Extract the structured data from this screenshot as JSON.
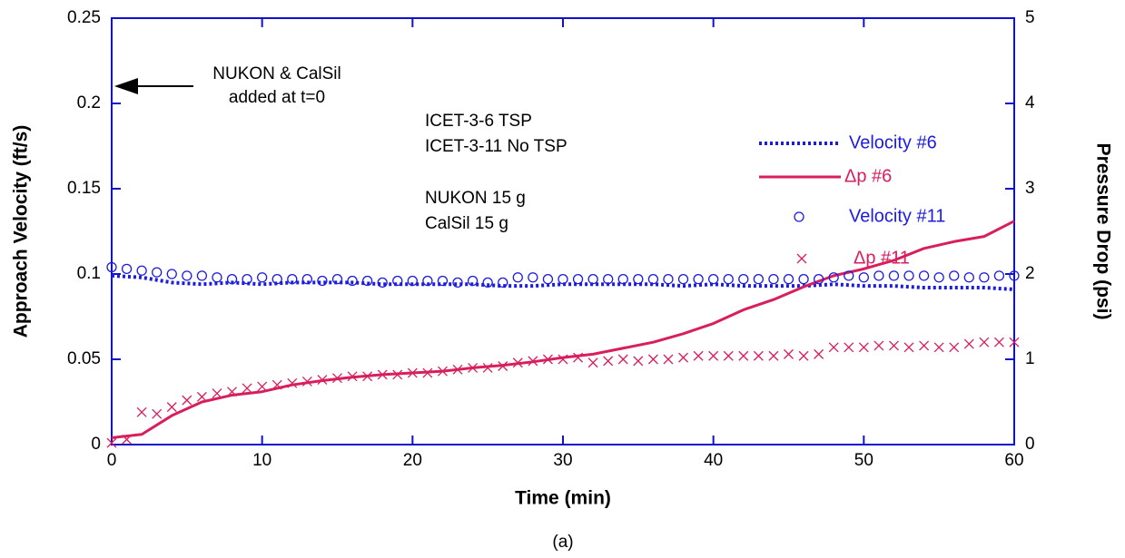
{
  "chart_data": {
    "type": "line",
    "caption": "(a)",
    "x_label": "Time (min)",
    "y_label": "Approach Velocity (ft/s)",
    "y2_label": "Pressure Drop (psi)",
    "xlim": [
      0,
      60
    ],
    "xticks": [
      0,
      10,
      20,
      30,
      40,
      50,
      60
    ],
    "ylim": [
      0,
      0.25
    ],
    "yticks": [
      0,
      0.05,
      0.1,
      0.15,
      0.2,
      0.25
    ],
    "y2lim": [
      0,
      5
    ],
    "y2ticks": [
      0,
      1,
      2,
      3,
      4,
      5
    ],
    "annotations": [
      "NUKON & CalSil",
      "added at t=0",
      "ICET-3-6 TSP",
      "ICET-3-11 No TSP",
      "NUKON 15 g",
      "CalSil 15 g"
    ],
    "series": [
      {
        "name": "Velocity #6",
        "color": "#1c1ce0",
        "style": "dotted",
        "x": [
          0,
          2,
          4,
          6,
          8,
          10,
          12,
          14,
          16,
          18,
          20,
          22,
          24,
          26,
          28,
          30,
          32,
          34,
          36,
          38,
          40,
          42,
          44,
          46,
          48,
          50,
          52,
          54,
          56,
          58,
          60
        ],
        "values": [
          0.099,
          0.098,
          0.095,
          0.094,
          0.095,
          0.094,
          0.095,
          0.095,
          0.095,
          0.094,
          0.094,
          0.094,
          0.094,
          0.093,
          0.093,
          0.094,
          0.094,
          0.094,
          0.094,
          0.093,
          0.094,
          0.093,
          0.093,
          0.093,
          0.094,
          0.093,
          0.093,
          0.092,
          0.092,
          0.092,
          0.091
        ]
      },
      {
        "name": "Δp #6",
        "color": "#d81e5b",
        "style": "solid",
        "axis": "y2",
        "x": [
          0,
          2,
          4,
          6,
          8,
          10,
          12,
          14,
          16,
          18,
          20,
          22,
          24,
          26,
          28,
          30,
          32,
          34,
          36,
          38,
          40,
          42,
          44,
          46,
          48,
          50,
          52,
          54,
          56,
          58,
          60
        ],
        "values": [
          0.08,
          0.12,
          0.34,
          0.5,
          0.58,
          0.62,
          0.7,
          0.75,
          0.79,
          0.82,
          0.84,
          0.86,
          0.9,
          0.93,
          0.97,
          1.02,
          1.06,
          1.13,
          1.2,
          1.3,
          1.42,
          1.58,
          1.7,
          1.85,
          1.98,
          2.06,
          2.16,
          2.3,
          2.38,
          2.44,
          2.62
        ]
      },
      {
        "name": "Velocity #11",
        "color": "#1c1ce0",
        "style": "circle",
        "x": [
          0,
          1,
          2,
          3,
          4,
          5,
          6,
          7,
          8,
          9,
          10,
          11,
          12,
          13,
          14,
          15,
          16,
          17,
          18,
          19,
          20,
          21,
          22,
          23,
          24,
          25,
          26,
          27,
          28,
          29,
          30,
          31,
          32,
          33,
          34,
          35,
          36,
          37,
          38,
          39,
          40,
          41,
          42,
          43,
          44,
          45,
          46,
          47,
          48,
          49,
          50,
          51,
          52,
          53,
          54,
          55,
          56,
          57,
          58,
          59,
          60
        ],
        "values": [
          0.104,
          0.103,
          0.102,
          0.101,
          0.1,
          0.099,
          0.099,
          0.098,
          0.097,
          0.097,
          0.098,
          0.097,
          0.097,
          0.097,
          0.096,
          0.097,
          0.096,
          0.096,
          0.095,
          0.096,
          0.096,
          0.096,
          0.096,
          0.095,
          0.096,
          0.095,
          0.095,
          0.098,
          0.098,
          0.097,
          0.097,
          0.097,
          0.097,
          0.097,
          0.097,
          0.097,
          0.097,
          0.097,
          0.097,
          0.097,
          0.097,
          0.097,
          0.097,
          0.097,
          0.097,
          0.097,
          0.097,
          0.097,
          0.098,
          0.099,
          0.098,
          0.099,
          0.099,
          0.099,
          0.099,
          0.098,
          0.099,
          0.098,
          0.098,
          0.099,
          0.099
        ]
      },
      {
        "name": "Δp #11",
        "color": "#d81e5b",
        "style": "cross",
        "axis": "y2",
        "x": [
          0,
          1,
          2,
          3,
          4,
          5,
          6,
          7,
          8,
          9,
          10,
          11,
          12,
          13,
          14,
          15,
          16,
          17,
          18,
          19,
          20,
          21,
          22,
          23,
          24,
          25,
          26,
          27,
          28,
          29,
          30,
          31,
          32,
          33,
          34,
          35,
          36,
          37,
          38,
          39,
          40,
          41,
          42,
          43,
          44,
          45,
          46,
          47,
          48,
          49,
          50,
          51,
          52,
          53,
          54,
          55,
          56,
          57,
          58,
          59,
          60
        ],
        "values": [
          0.02,
          0.06,
          0.38,
          0.36,
          0.44,
          0.52,
          0.56,
          0.6,
          0.62,
          0.66,
          0.68,
          0.7,
          0.72,
          0.74,
          0.76,
          0.78,
          0.8,
          0.8,
          0.82,
          0.82,
          0.84,
          0.84,
          0.86,
          0.88,
          0.9,
          0.9,
          0.92,
          0.96,
          0.98,
          1.0,
          1.0,
          1.02,
          0.96,
          0.98,
          1.0,
          0.98,
          1.0,
          1.0,
          1.02,
          1.04,
          1.04,
          1.04,
          1.04,
          1.04,
          1.04,
          1.06,
          1.04,
          1.06,
          1.14,
          1.14,
          1.14,
          1.16,
          1.16,
          1.14,
          1.16,
          1.14,
          1.14,
          1.18,
          1.2,
          1.2,
          1.2
        ]
      }
    ]
  }
}
